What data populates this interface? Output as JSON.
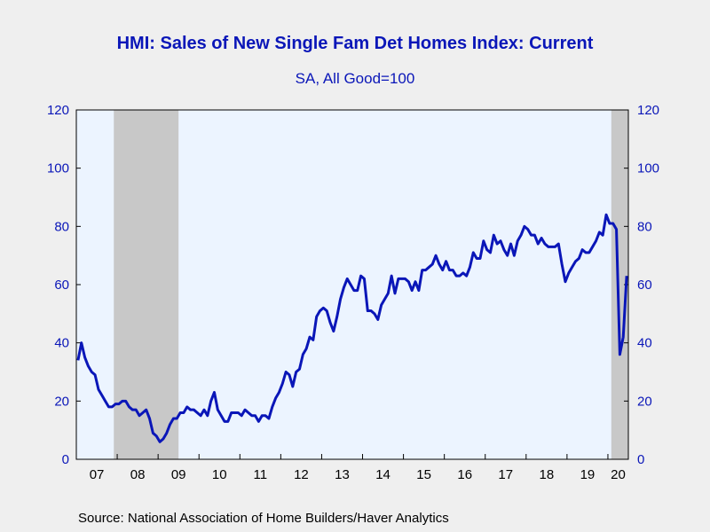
{
  "title": "HMI: Sales of New Single Fam Det Homes Index: Current",
  "subtitle": "SA, All Good=100",
  "source": "Source:  National Association of Home Builders/Haver Analytics",
  "chart_data": {
    "type": "line",
    "title": "HMI: Sales of New Single Fam Det Homes Index: Current",
    "subtitle": "SA, All Good=100",
    "xlabel": "",
    "ylabel": "",
    "ylim": [
      0,
      120
    ],
    "xlim": [
      "2007-01",
      "2020-07"
    ],
    "yticks": [
      0,
      20,
      40,
      60,
      80,
      100,
      120
    ],
    "y_axes": "both (left and right, identical scale)",
    "grid": false,
    "legend": "none",
    "line_color": "#0a16b8",
    "shade_color": "#c8c8c8",
    "plot_background": "#ecf4ff",
    "x_tick_labels": [
      "07",
      "08",
      "09",
      "10",
      "11",
      "12",
      "13",
      "14",
      "15",
      "16",
      "17",
      "18",
      "19",
      "20"
    ],
    "recessions": [
      {
        "start": "2007-12",
        "end": "2009-06"
      },
      {
        "start": "2020-02",
        "end": "2020-06"
      }
    ],
    "series": [
      {
        "start": "2007-01",
        "frequency": "monthly",
        "values": [
          34,
          40,
          35,
          32,
          30,
          29,
          24,
          22,
          20,
          18,
          18,
          19,
          19,
          20,
          20,
          18,
          17,
          17,
          15,
          16,
          17,
          14,
          9,
          8,
          6,
          7,
          9,
          12,
          14,
          14,
          16,
          16,
          18,
          17,
          17,
          16,
          15,
          17,
          15,
          20,
          23,
          17,
          15,
          13,
          13,
          16,
          16,
          16,
          15,
          17,
          16,
          15,
          15,
          13,
          15,
          15,
          14,
          18,
          21,
          23,
          26,
          30,
          29,
          25,
          30,
          31,
          36,
          38,
          42,
          41,
          49,
          51,
          52,
          51,
          47,
          44,
          49,
          55,
          59,
          62,
          60,
          58,
          58,
          63,
          62,
          51,
          51,
          50,
          48,
          53,
          55,
          57,
          63,
          57,
          62,
          62,
          62,
          61,
          58,
          61,
          58,
          65,
          65,
          66,
          67,
          70,
          67,
          65,
          68,
          65,
          65,
          63,
          63,
          64,
          63,
          66,
          71,
          69,
          69,
          75,
          72,
          71,
          77,
          74,
          75,
          72,
          70,
          74,
          70,
          75,
          77,
          80,
          79,
          77,
          77,
          74,
          76,
          74,
          73,
          73,
          73,
          74,
          67,
          61,
          64,
          66,
          68,
          69,
          72,
          71,
          71,
          73,
          75,
          78,
          77,
          84,
          81,
          81,
          79,
          36,
          42,
          63
        ]
      }
    ]
  }
}
